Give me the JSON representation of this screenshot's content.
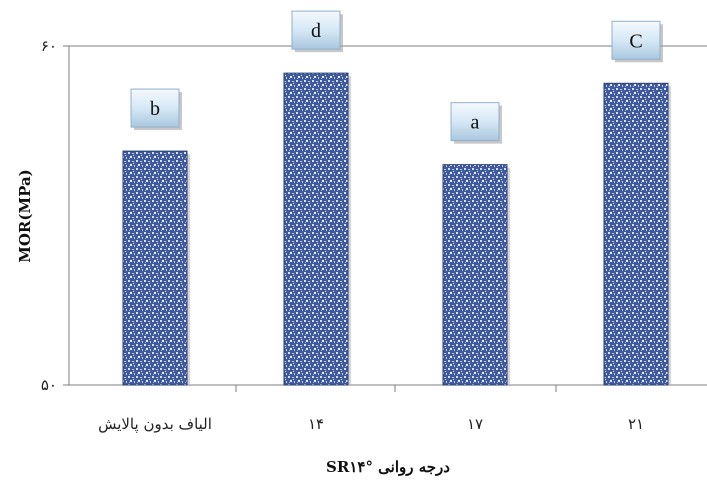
{
  "chart_data": {
    "type": "bar",
    "categories": [
      "الیاف بدون پالایش",
      "۱۴",
      "۱۷",
      "۲۱"
    ],
    "values": [
      56.9,
      59.2,
      56.5,
      58.9
    ],
    "significance_letters": [
      "b",
      "d",
      "a",
      "C"
    ],
    "title": "",
    "xlabel": "درجه روانی SR۱۴°",
    "ylabel": "MOR(MPa)",
    "ylim": [
      50,
      60
    ],
    "yticks": [
      {
        "value": 50,
        "label": "۵۰"
      },
      {
        "value": 60,
        "label": "۶۰"
      }
    ],
    "grid": "horizontal line at top tick only",
    "bar_color": "#3f5a9c",
    "letter_box_color": "#cfe3f3",
    "axis_color": "#7f7f7f"
  }
}
